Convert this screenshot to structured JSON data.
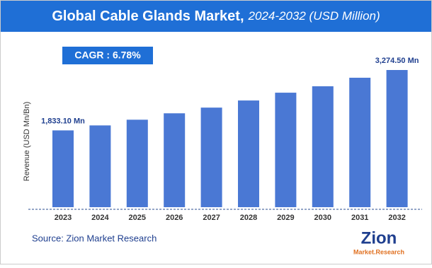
{
  "chart_data": {
    "type": "bar",
    "title": "Global Cable Glands Market,",
    "subtitle": "2024-2032 (USD Million)",
    "cagr": "CAGR :  6.78%",
    "y_label": "Revenue (USD Mn/Bn)",
    "categories": [
      "2023",
      "2024",
      "2025",
      "2026",
      "2027",
      "2028",
      "2029",
      "2030",
      "2031",
      "2032"
    ],
    "values": [
      1833.1,
      1952,
      2088,
      2241,
      2377,
      2547,
      2733,
      2886,
      3090,
      3274.5
    ],
    "value_labels": [
      "1,833.10 Mn",
      null,
      null,
      null,
      null,
      null,
      null,
      null,
      null,
      "3,274.50 Mn"
    ],
    "color": "#4a78d4",
    "source": "Source: Zion Market Research",
    "logo": {
      "name": "Zion",
      "sub": "Market.Research"
    }
  }
}
